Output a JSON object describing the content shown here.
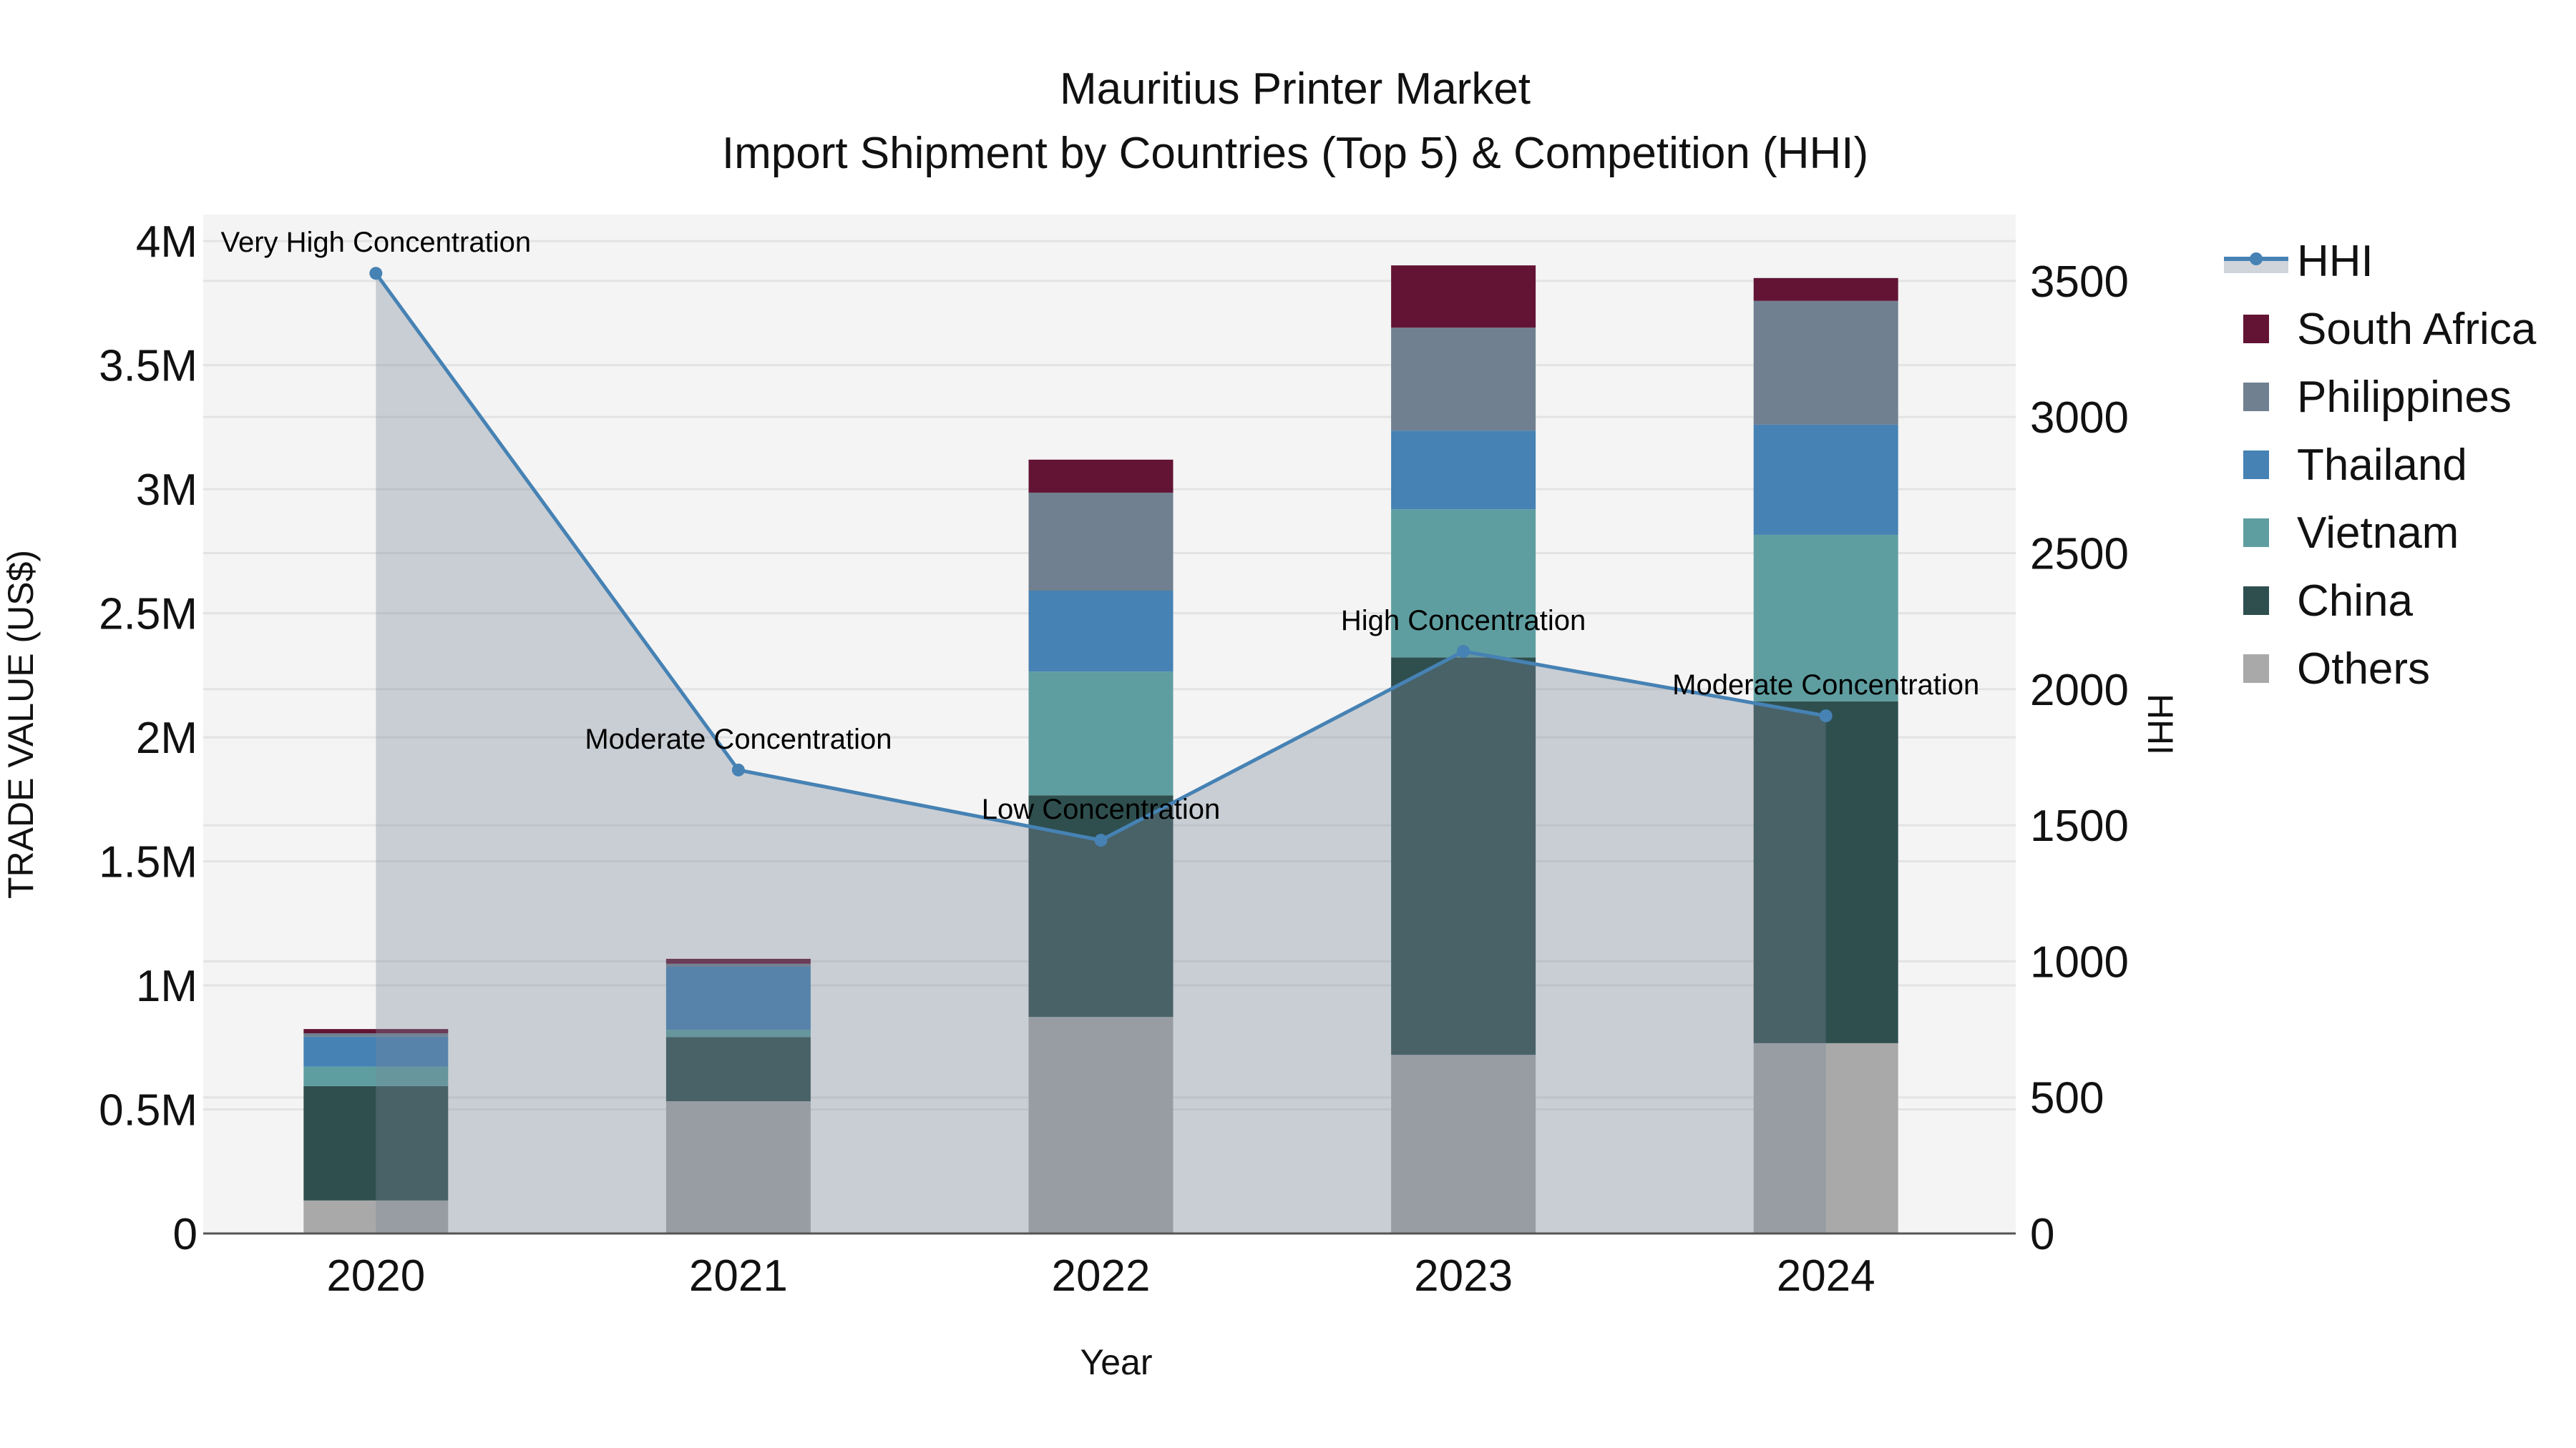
{
  "title": {
    "line1": "Mauritius Printer Market",
    "line2": "Import Shipment by Countries (Top 5) & Competition (HHI)"
  },
  "axes": {
    "x_title": "Year",
    "y_left_title": "TRADE VALUE (US$)",
    "y_right_title": "HHI",
    "y_left_ticks": [
      {
        "value": 0,
        "label": "0"
      },
      {
        "value": 500000,
        "label": "0.5M"
      },
      {
        "value": 1000000,
        "label": "1M"
      },
      {
        "value": 1500000,
        "label": "1.5M"
      },
      {
        "value": 2000000,
        "label": "2M"
      },
      {
        "value": 2500000,
        "label": "2.5M"
      },
      {
        "value": 3000000,
        "label": "3M"
      },
      {
        "value": 3500000,
        "label": "3.5M"
      },
      {
        "value": 4000000,
        "label": "4M"
      }
    ],
    "y_right_ticks": [
      {
        "value": 0,
        "label": "0"
      },
      {
        "value": 500,
        "label": "500"
      },
      {
        "value": 1000,
        "label": "1000"
      },
      {
        "value": 1500,
        "label": "1500"
      },
      {
        "value": 2000,
        "label": "2000"
      },
      {
        "value": 2500,
        "label": "2500"
      },
      {
        "value": 3000,
        "label": "3000"
      },
      {
        "value": 3500,
        "label": "3500"
      }
    ]
  },
  "legend": {
    "items": [
      {
        "label": "HHI",
        "type": "line",
        "color": "#4682b4"
      },
      {
        "label": "South Africa",
        "type": "bar",
        "color": "#631435"
      },
      {
        "label": "Philippines",
        "type": "bar",
        "color": "#708090"
      },
      {
        "label": "Thailand",
        "type": "bar",
        "color": "#4682b4"
      },
      {
        "label": "Vietnam",
        "type": "bar",
        "color": "#5f9ea0"
      },
      {
        "label": "China",
        "type": "bar",
        "color": "#2f4f4f"
      },
      {
        "label": "Others",
        "type": "bar",
        "color": "#a9a9a9"
      }
    ]
  },
  "colors": {
    "plot_bg": "#f4f4f4",
    "grid": "#e3e3e3",
    "hhi_line": "#4682b4",
    "hhi_fill": "rgba(119,136,153,0.35)",
    "axis_line": "#555555"
  },
  "chart_data": {
    "type": "bar",
    "title": "Mauritius Printer Market — Import Shipment by Countries (Top 5) & Competition (HHI)",
    "xlabel": "Year",
    "ylabel": "TRADE VALUE (US$)",
    "y2label": "HHI",
    "ylim": [
      0,
      4107000
    ],
    "y2lim": [
      0,
      3744
    ],
    "grid": true,
    "legend_position": "right",
    "barmode": "stack",
    "categories": [
      "2020",
      "2021",
      "2022",
      "2023",
      "2024"
    ],
    "series": [
      {
        "name": "Others",
        "color": "#a9a9a9",
        "values": [
          133000,
          533000,
          873000,
          720000,
          767000
        ]
      },
      {
        "name": "China",
        "color": "#2f4f4f",
        "values": [
          461000,
          259000,
          893000,
          1602000,
          1378000
        ]
      },
      {
        "name": "Vietnam",
        "color": "#5f9ea0",
        "values": [
          78000,
          29000,
          499000,
          597000,
          671000
        ]
      },
      {
        "name": "Thailand",
        "color": "#4682b4",
        "values": [
          121000,
          254000,
          326000,
          317000,
          444000
        ]
      },
      {
        "name": "Philippines",
        "color": "#708090",
        "values": [
          14000,
          12000,
          395000,
          415000,
          499000
        ]
      },
      {
        "name": "South Africa",
        "color": "#631435",
        "values": [
          17000,
          20000,
          133000,
          251000,
          92000
        ]
      }
    ],
    "line_series": {
      "name": "HHI",
      "axis": "y2",
      "type": "line+area",
      "color": "#4682b4",
      "values": [
        3528,
        1703,
        1445,
        2139,
        1902
      ],
      "annotations": [
        "Very High Concentration",
        "Moderate Concentration",
        "Low Concentration",
        "High Concentration",
        "Moderate Concentration"
      ]
    }
  }
}
